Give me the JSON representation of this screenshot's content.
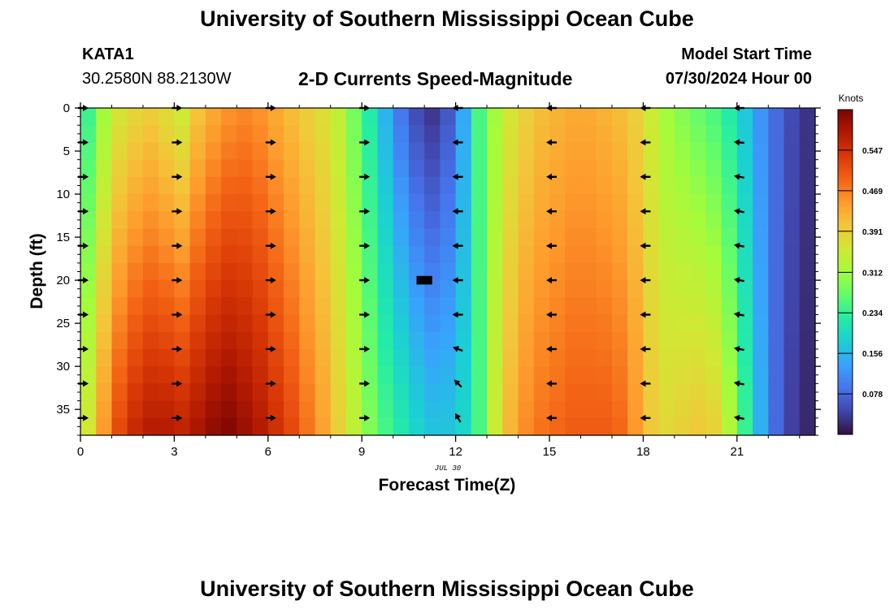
{
  "header": {
    "title": "University of Southern Mississippi Ocean Cube",
    "station": "KATA1",
    "coordinates": "30.2580N  88.2130W",
    "chart_subtitle": "2-D Currents Speed-Magnitude",
    "model_start_label": "Model Start Time",
    "model_start_value": "07/30/2024 Hour 00"
  },
  "footer": {
    "title": "University of Southern Mississippi Ocean Cube"
  },
  "colors": {
    "colormap": [
      "#30123b",
      "#4145ab",
      "#4675ed",
      "#39a2fc",
      "#1bcfd4",
      "#24eca6",
      "#61fc6c",
      "#a4fc3b",
      "#d1e834",
      "#f3c63a",
      "#fe9b2d",
      "#f36315",
      "#d93806",
      "#b11901",
      "#7a0403"
    ],
    "arrow": "#000000",
    "missing": "#000000"
  },
  "chart_data": {
    "type": "heatmap",
    "title": "2-D Currents Speed-Magnitude",
    "xlabel": "Forecast Time(Z)",
    "ylabel": "Depth (ft)",
    "x_date_label": "JUL 30",
    "xlim": [
      0,
      23.5
    ],
    "ylim": [
      38,
      0
    ],
    "x_ticks": [
      0,
      3,
      6,
      9,
      12,
      15,
      18,
      21
    ],
    "x_tick_labels": [
      "0",
      "3",
      "6",
      "9",
      "12",
      "15",
      "18",
      "21"
    ],
    "y_ticks": [
      0,
      5,
      10,
      15,
      20,
      25,
      30,
      35
    ],
    "y_tick_labels": [
      "0",
      "5",
      "10",
      "15",
      "20",
      "25",
      "30",
      "35"
    ],
    "time_step_hours": 0.5,
    "depth_step_ft": 2,
    "colorbar": {
      "title": "Knots",
      "min": 0,
      "max": 0.625,
      "ticks": [
        0.078,
        0.156,
        0.234,
        0.312,
        0.391,
        0.469,
        0.547
      ],
      "tick_labels": [
        "0.078",
        "0.156",
        "0.234",
        "0.312",
        "0.391",
        "0.469",
        "0.547"
      ]
    },
    "speed_keyframes": {
      "hours": [
        0,
        0.5,
        1,
        1.5,
        2,
        2.5,
        3,
        3.5,
        4,
        4.5,
        5,
        5.5,
        6,
        6.5,
        7,
        7.5,
        8,
        8.5,
        9,
        9.5,
        10,
        10.5,
        11,
        11.5,
        12,
        12.5,
        13,
        13.5,
        14,
        14.5,
        15,
        15.5,
        16,
        16.5,
        17,
        17.5,
        18,
        18.5,
        19,
        19.5,
        20,
        20.5,
        21,
        21.5,
        22,
        22.5,
        23
      ],
      "surface_knots": [
        0.24,
        0.31,
        0.36,
        0.38,
        0.39,
        0.37,
        0.35,
        0.4,
        0.43,
        0.45,
        0.46,
        0.45,
        0.43,
        0.41,
        0.39,
        0.37,
        0.34,
        0.28,
        0.22,
        0.15,
        0.09,
        0.05,
        0.03,
        0.06,
        0.14,
        0.25,
        0.31,
        0.36,
        0.39,
        0.41,
        0.42,
        0.43,
        0.43,
        0.42,
        0.41,
        0.39,
        0.35,
        0.31,
        0.29,
        0.27,
        0.25,
        0.22,
        0.17,
        0.12,
        0.08,
        0.05,
        0.03
      ],
      "bottom_knots": [
        0.36,
        0.45,
        0.52,
        0.56,
        0.58,
        0.58,
        0.57,
        0.59,
        0.61,
        0.62,
        0.6,
        0.58,
        0.55,
        0.52,
        0.48,
        0.44,
        0.39,
        0.34,
        0.29,
        0.25,
        0.22,
        0.19,
        0.17,
        0.17,
        0.19,
        0.25,
        0.35,
        0.42,
        0.46,
        0.48,
        0.49,
        0.5,
        0.5,
        0.5,
        0.49,
        0.45,
        0.4,
        0.38,
        0.39,
        0.4,
        0.39,
        0.33,
        0.24,
        0.15,
        0.08,
        0.04,
        0.02
      ]
    },
    "missing_cells": [
      {
        "hour": 11.0,
        "depth_ft": 20
      }
    ],
    "vector_arrows": {
      "hours": [
        0,
        3,
        6,
        9,
        12,
        15,
        18,
        21
      ],
      "depths_ft": [
        0,
        4,
        8,
        12,
        16,
        20,
        24,
        28,
        32,
        36
      ],
      "direction_deg": [
        [
          0,
          0,
          0,
          0,
          0,
          0,
          0,
          0,
          0,
          0
        ],
        [
          0,
          0,
          0,
          0,
          0,
          0,
          0,
          0,
          0,
          0
        ],
        [
          0,
          0,
          0,
          0,
          0,
          0,
          0,
          0,
          0,
          0
        ],
        [
          0,
          0,
          0,
          0,
          0,
          0,
          0,
          0,
          0,
          0
        ],
        [
          180,
          180,
          180,
          180,
          180,
          180,
          180,
          200,
          225,
          240
        ],
        [
          180,
          180,
          180,
          180,
          180,
          180,
          180,
          180,
          180,
          180
        ],
        [
          180,
          180,
          180,
          180,
          180,
          180,
          180,
          180,
          180,
          180
        ],
        [
          180,
          185,
          190,
          190,
          190,
          190,
          190,
          190,
          190,
          190
        ]
      ]
    }
  }
}
